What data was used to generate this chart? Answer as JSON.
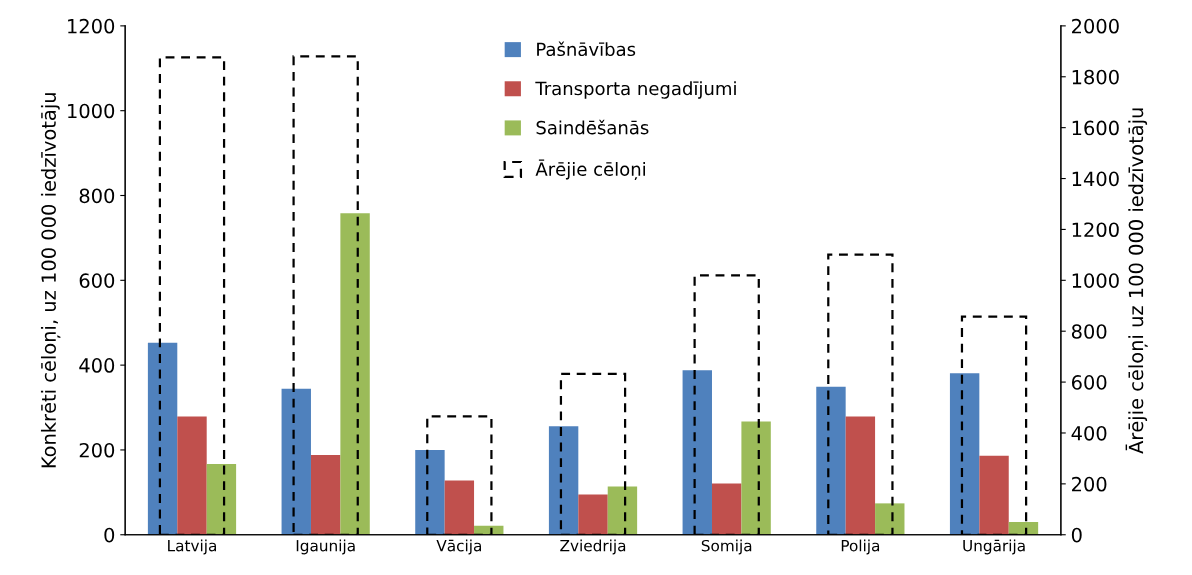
{
  "chart_data": {
    "type": "bar",
    "ylabel": "Konkrēti cēloņi, uz 100 000 iedzīvotāju",
    "y2label": "Ārējie cēloņi uz 100 000 iedzīvotāju",
    "categories": [
      "Latvija",
      "Igaunija",
      "Vācija",
      "Zviedrija",
      "Somija",
      "Polija",
      "Ungārija"
    ],
    "series": [
      {
        "name": "Pašnāvības",
        "color": "#4f81bd",
        "values": [
          453,
          344,
          200,
          256,
          388,
          349,
          381
        ]
      },
      {
        "name": "Transporta negadījumi",
        "color": "#c0504d",
        "values": [
          279,
          188,
          128,
          95,
          121,
          279,
          186
        ]
      },
      {
        "name": "Saindēšanās",
        "color": "#9bbb59",
        "values": [
          167,
          758,
          21,
          114,
          267,
          74,
          30
        ]
      },
      {
        "name": "Ārējie cēloņi",
        "color": "#000000",
        "axis": "y2",
        "line_style": "dashed",
        "values": [
          1876,
          1880,
          465,
          632,
          1019,
          1101,
          857
        ]
      }
    ],
    "ylim": [
      0,
      1200
    ],
    "yticks": [
      0,
      200,
      400,
      600,
      800,
      1000,
      1200
    ],
    "y2lim": [
      0,
      2000
    ],
    "y2ticks": [
      0,
      200,
      400,
      600,
      800,
      1000,
      1200,
      1400,
      1600,
      1800,
      2000
    ],
    "grid": false,
    "legend": "top"
  }
}
